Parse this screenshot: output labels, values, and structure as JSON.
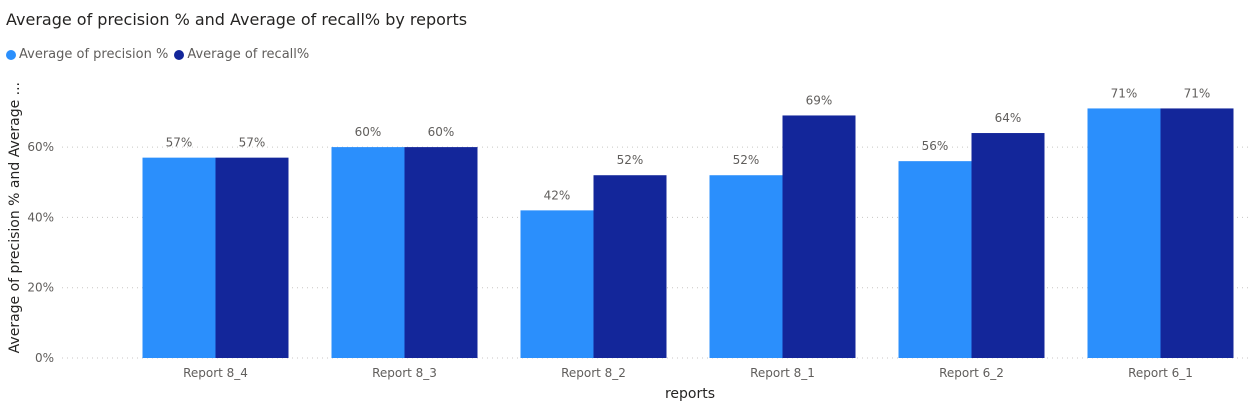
{
  "chart_data": {
    "type": "bar",
    "title": "Average of precision % and Average of recall% by reports",
    "xlabel": "reports",
    "ylabel": "Average of precision % and Average ...",
    "categories": [
      "Report 8_4",
      "Report 8_3",
      "Report 8_2",
      "Report 8_1",
      "Report 6_2",
      "Report 6_1"
    ],
    "series": [
      {
        "name": "Average of precision %",
        "color": "#2b8ffc",
        "values": [
          57,
          60,
          42,
          52,
          56,
          71
        ]
      },
      {
        "name": "Average of recall%",
        "color": "#13269a",
        "values": [
          57,
          60,
          52,
          69,
          64,
          71
        ]
      }
    ],
    "ylim": [
      0,
      75
    ],
    "yticks": [
      0,
      20,
      40,
      60
    ],
    "value_suffix": "%",
    "grid": true,
    "legend_position": "top-left"
  }
}
